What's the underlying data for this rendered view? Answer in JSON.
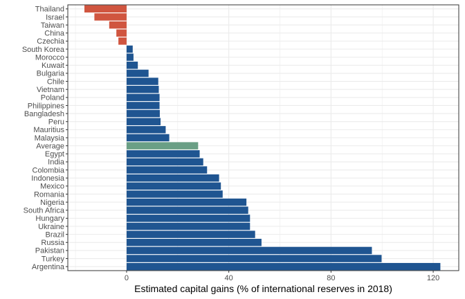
{
  "chart_data": {
    "type": "bar",
    "orientation": "horizontal",
    "categories": [
      "Thailand",
      "Israel",
      "Taiwan",
      "China",
      "Czechia",
      "South Korea",
      "Morocco",
      "Kuwait",
      "Bulgaria",
      "Chile",
      "Vietnam",
      "Poland",
      "Philippines",
      "Bangladesh",
      "Peru",
      "Mauritius",
      "Malaysia",
      "Average",
      "Egypt",
      "India",
      "Colombia",
      "Indonesia",
      "Mexico",
      "Romania",
      "Nigeria",
      "South Africa",
      "Hungary",
      "Ukraine",
      "Brazil",
      "Russia",
      "Pakistan",
      "Turkey",
      "Argentina"
    ],
    "values": [
      -16.5,
      -12.6,
      -6.8,
      -4.0,
      -3.2,
      2.4,
      2.7,
      4.4,
      8.6,
      12.4,
      12.6,
      12.9,
      12.9,
      13.0,
      13.3,
      15.3,
      16.7,
      28.0,
      28.6,
      30.0,
      31.5,
      36.2,
      36.9,
      37.6,
      46.9,
      47.6,
      48.3,
      48.3,
      50.3,
      52.8,
      96.0,
      99.8,
      122.8
    ],
    "colors": {
      "negative": "#d0553f",
      "positive": "#1f5591",
      "average": "#6a9f85",
      "grid": "#ebebeb",
      "panel_border": "#333333",
      "tick": "#333333"
    },
    "title": "",
    "xlabel": "Estimated capital gains (% of international reserves in 2018)",
    "ylabel": "",
    "xlim": [
      -23,
      130
    ],
    "xticks": [
      0,
      40,
      80,
      120
    ],
    "grid": true,
    "legend": "none"
  }
}
